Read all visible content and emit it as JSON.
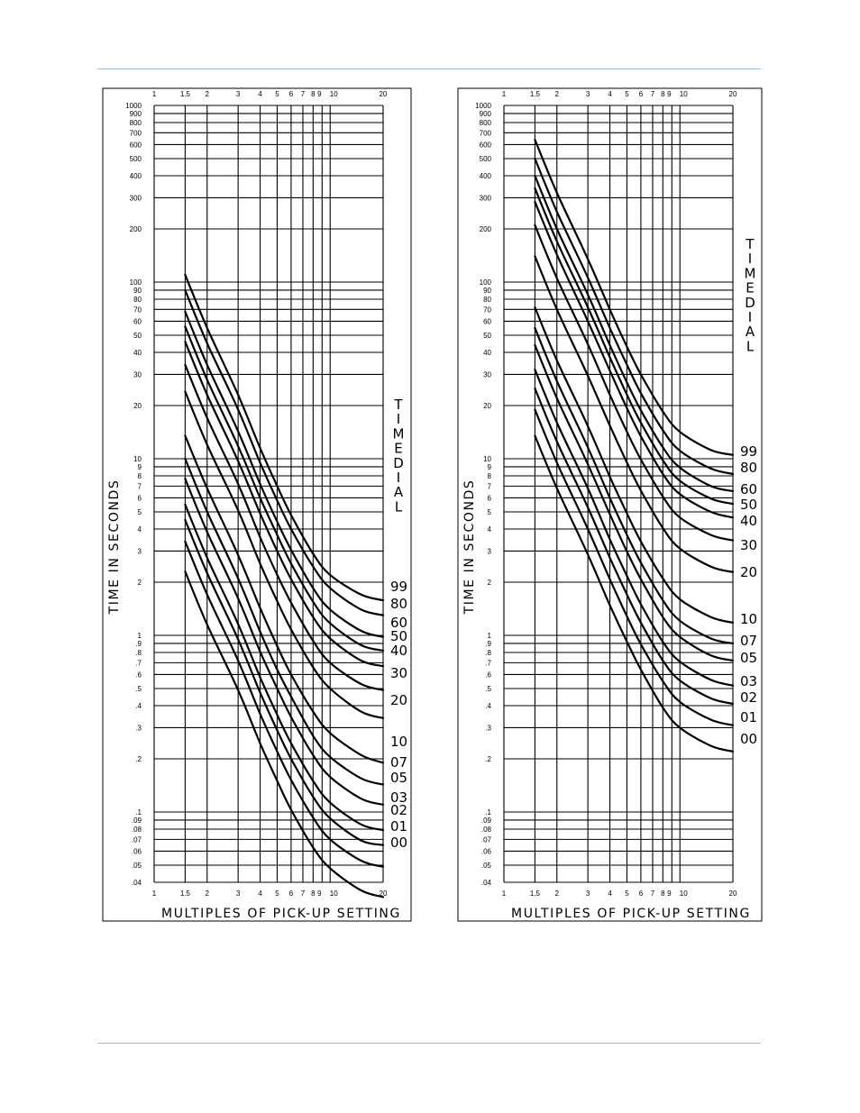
{
  "page": {
    "rule_color": "#9bbad6"
  },
  "chart_data": [
    {
      "type": "line",
      "title": "",
      "xlabel": "MULTIPLES OF PICK-UP SETTING",
      "ylabel": "TIME IN SECONDS",
      "legend_title": "TIME DIAL",
      "x_scale": "log",
      "y_scale": "log",
      "xlim": [
        1,
        20
      ],
      "ylim": [
        0.04,
        1000
      ],
      "grid": true,
      "x_ticks": [
        1,
        1.5,
        2,
        3,
        4,
        5,
        6,
        7,
        8,
        9,
        10,
        20
      ],
      "x_tick_labels": [
        "1",
        "1.5",
        "2",
        "3",
        "4",
        "5",
        "6",
        "7",
        "8",
        "9",
        "10",
        "20"
      ],
      "y_ticks": [
        1000,
        900,
        800,
        700,
        600,
        500,
        400,
        300,
        200,
        100,
        90,
        80,
        70,
        60,
        50,
        40,
        30,
        20,
        10,
        9,
        8,
        7,
        6,
        5,
        4,
        3,
        2,
        1,
        0.9,
        0.8,
        0.7,
        0.6,
        0.5,
        0.4,
        0.3,
        0.2,
        0.1,
        0.09,
        0.08,
        0.07,
        0.06,
        0.05,
        0.04
      ],
      "y_tick_labels": [
        "1000",
        "900",
        "800",
        "700",
        "600",
        "500",
        "400",
        "300",
        "200",
        "100",
        "90",
        "80",
        "70",
        "60",
        "50",
        "40",
        "30",
        "20",
        "10",
        "9",
        "8",
        "7",
        "6",
        "5",
        "4",
        "3",
        "2",
        "1",
        ".9",
        ".8",
        ".7",
        ".6",
        ".5",
        ".4",
        ".3",
        ".2",
        ".1",
        ".09",
        ".08",
        ".07",
        ".06",
        ".05",
        ".04"
      ],
      "x": [
        1.5,
        2,
        3,
        4,
        5,
        6,
        8,
        10,
        15,
        20
      ],
      "series": [
        {
          "name": "99",
          "values": [
            110,
            55,
            23,
            11.5,
            7,
            4.8,
            2.9,
            2.2,
            1.7,
            1.58
          ]
        },
        {
          "name": "80",
          "values": [
            90,
            45,
            19,
            9.5,
            5.8,
            4.0,
            2.45,
            1.85,
            1.4,
            1.3
          ]
        },
        {
          "name": "60",
          "values": [
            68,
            34,
            14.3,
            7.2,
            4.4,
            3.05,
            1.85,
            1.4,
            1.06,
            0.98
          ]
        },
        {
          "name": "50",
          "values": [
            56,
            28,
            11.8,
            6.0,
            3.7,
            2.55,
            1.55,
            1.17,
            0.88,
            0.82
          ]
        },
        {
          "name": "40",
          "values": [
            46,
            23,
            9.7,
            4.9,
            3.0,
            2.08,
            1.27,
            0.96,
            0.72,
            0.67
          ]
        },
        {
          "name": "30",
          "values": [
            34,
            17,
            7.2,
            3.6,
            2.2,
            1.53,
            0.93,
            0.7,
            0.53,
            0.49
          ]
        },
        {
          "name": "20",
          "values": [
            24,
            12,
            5.1,
            2.55,
            1.56,
            1.08,
            0.66,
            0.5,
            0.37,
            0.34
          ]
        },
        {
          "name": "10",
          "values": [
            13.5,
            6.8,
            2.85,
            1.43,
            0.87,
            0.6,
            0.37,
            0.28,
            0.21,
            0.19
          ]
        },
        {
          "name": "07",
          "values": [
            10,
            5.0,
            2.1,
            1.05,
            0.64,
            0.45,
            0.27,
            0.205,
            0.155,
            0.143
          ]
        },
        {
          "name": "05",
          "values": [
            7.7,
            3.85,
            1.62,
            0.81,
            0.5,
            0.345,
            0.21,
            0.158,
            0.119,
            0.11
          ]
        },
        {
          "name": "03",
          "values": [
            5.5,
            2.75,
            1.16,
            0.58,
            0.355,
            0.245,
            0.15,
            0.113,
            0.085,
            0.079
          ]
        },
        {
          "name": "02",
          "values": [
            4.5,
            2.25,
            0.95,
            0.475,
            0.29,
            0.2,
            0.122,
            0.092,
            0.069,
            0.065
          ]
        },
        {
          "name": "01",
          "values": [
            3.4,
            1.7,
            0.72,
            0.36,
            0.22,
            0.152,
            0.093,
            0.07,
            0.053,
            0.049
          ]
        },
        {
          "name": "00",
          "values": [
            2.3,
            1.15,
            0.49,
            0.245,
            0.15,
            0.103,
            0.063,
            0.048,
            0.036,
            0.033
          ]
        }
      ]
    },
    {
      "type": "line",
      "title": "",
      "xlabel": "MULTIPLES OF PICK-UP SETTING",
      "ylabel": "TIME IN SECONDS",
      "legend_title": "TIME DIAL",
      "x_scale": "log",
      "y_scale": "log",
      "xlim": [
        1,
        20
      ],
      "ylim": [
        0.04,
        1000
      ],
      "grid": true,
      "x_ticks": [
        1,
        1.5,
        2,
        3,
        4,
        5,
        6,
        7,
        8,
        9,
        10,
        20
      ],
      "x_tick_labels": [
        "1",
        "1.5",
        "2",
        "3",
        "4",
        "5",
        "6",
        "7",
        "8",
        "9",
        "10",
        "20"
      ],
      "y_ticks": [
        1000,
        900,
        800,
        700,
        600,
        500,
        400,
        300,
        200,
        100,
        90,
        80,
        70,
        60,
        50,
        40,
        30,
        20,
        10,
        9,
        8,
        7,
        6,
        5,
        4,
        3,
        2,
        1,
        0.9,
        0.8,
        0.7,
        0.6,
        0.5,
        0.4,
        0.3,
        0.2,
        0.1,
        0.09,
        0.08,
        0.07,
        0.06,
        0.05,
        0.04
      ],
      "y_tick_labels": [
        "1000",
        "900",
        "800",
        "700",
        "600",
        "500",
        "400",
        "300",
        "200",
        "100",
        "90",
        "80",
        "70",
        "60",
        "50",
        "40",
        "30",
        "20",
        "10",
        "9",
        "8",
        "7",
        "6",
        "5",
        "4",
        "3",
        "2",
        "1",
        ".9",
        ".8",
        ".7",
        ".6",
        ".5",
        ".4",
        ".3",
        ".2",
        ".1",
        ".09",
        ".08",
        ".07",
        ".06",
        ".05",
        ".04"
      ],
      "x": [
        1.5,
        2,
        3,
        4,
        5,
        6,
        8,
        10,
        15,
        20
      ],
      "series": [
        {
          "name": "99",
          "values": [
            640,
            320,
            135,
            70,
            43,
            30,
            18.5,
            14.2,
            11.2,
            10.5
          ]
        },
        {
          "name": "80",
          "values": [
            500,
            250,
            106,
            55,
            34,
            23.5,
            14.5,
            11.1,
            8.8,
            8.2
          ]
        },
        {
          "name": "60",
          "values": [
            400,
            200,
            85,
            44,
            27,
            18.8,
            11.6,
            8.9,
            7.0,
            6.55
          ]
        },
        {
          "name": "50",
          "values": [
            340,
            170,
            72,
            37.5,
            23,
            16,
            9.8,
            7.5,
            5.95,
            5.55
          ]
        },
        {
          "name": "40",
          "values": [
            285,
            143,
            60,
            31.5,
            19.3,
            13.4,
            8.2,
            6.3,
            5.0,
            4.65
          ]
        },
        {
          "name": "30",
          "values": [
            210,
            105,
            44.5,
            23,
            14.2,
            9.9,
            6.1,
            4.65,
            3.7,
            3.45
          ]
        },
        {
          "name": "20",
          "values": [
            140,
            70,
            29.5,
            15.4,
            9.5,
            6.6,
            4.05,
            3.1,
            2.45,
            2.28
          ]
        },
        {
          "name": "10",
          "values": [
            72,
            36,
            15.3,
            7.9,
            4.9,
            3.4,
            2.1,
            1.6,
            1.27,
            1.18
          ]
        },
        {
          "name": "07",
          "values": [
            55,
            27.5,
            11.6,
            6.0,
            3.7,
            2.58,
            1.58,
            1.21,
            0.96,
            0.9
          ]
        },
        {
          "name": "05",
          "values": [
            44,
            22,
            9.3,
            4.85,
            2.98,
            2.08,
            1.27,
            0.98,
            0.77,
            0.72
          ]
        },
        {
          "name": "03",
          "values": [
            32,
            16,
            6.8,
            3.5,
            2.17,
            1.5,
            0.92,
            0.71,
            0.56,
            0.52
          ]
        },
        {
          "name": "02",
          "values": [
            25,
            12.5,
            5.3,
            2.75,
            1.7,
            1.18,
            0.72,
            0.555,
            0.44,
            0.41
          ]
        },
        {
          "name": "01",
          "values": [
            19,
            9.5,
            4.0,
            2.08,
            1.28,
            0.89,
            0.55,
            0.42,
            0.333,
            0.31
          ]
        },
        {
          "name": "00",
          "values": [
            13.5,
            6.8,
            2.87,
            1.48,
            0.92,
            0.64,
            0.39,
            0.3,
            0.237,
            0.22
          ]
        }
      ]
    }
  ]
}
